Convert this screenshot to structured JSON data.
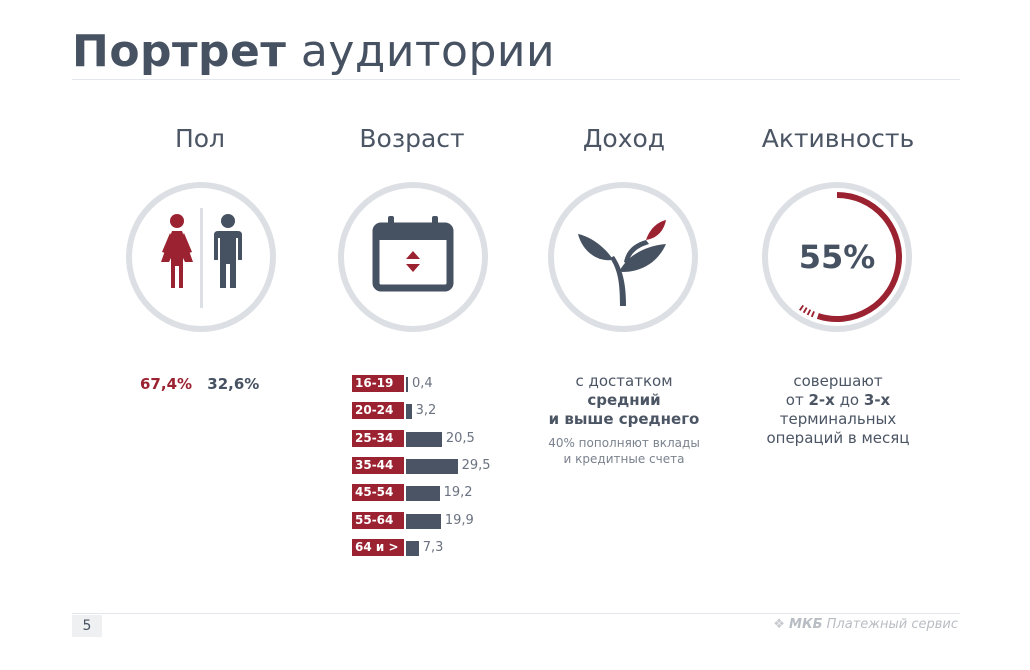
{
  "title": {
    "bold": "Портрет",
    "light": "аудитории"
  },
  "columns": {
    "gender": {
      "heading": "Пол",
      "female_pct": "67,4%",
      "male_pct": "32,6%",
      "female_color": "#9b2230",
      "male_color": "#465162"
    },
    "age": {
      "heading": "Возраст",
      "rows": [
        {
          "label": "16-19",
          "value": 0.4,
          "value_text": "0,4"
        },
        {
          "label": "20-24",
          "value": 3.2,
          "value_text": "3,2"
        },
        {
          "label": "25-34",
          "value": 20.5,
          "value_text": "20,5"
        },
        {
          "label": "35-44",
          "value": 29.5,
          "value_text": "29,5"
        },
        {
          "label": "45-54",
          "value": 19.2,
          "value_text": "19,2"
        },
        {
          "label": "55-64",
          "value": 19.9,
          "value_text": "19,9"
        },
        {
          "label": "64 и >",
          "value": 7.3,
          "value_text": "7,3"
        }
      ]
    },
    "income": {
      "heading": "Доход",
      "line1": "с достатком",
      "line2": "средний",
      "line3": "и выше среднего",
      "sub1": "40% пополняют вклады",
      "sub2": "и кредитные счета"
    },
    "activity": {
      "heading": "Активность",
      "percent": "55%",
      "percent_value": 55,
      "line1_pre": "совершают",
      "line2_a": "от ",
      "line2_b": "2-х",
      "line2_c": " до ",
      "line2_d": "3-х",
      "line3": "терминальных",
      "line4": "операций в месяц"
    }
  },
  "footer": {
    "page_number": "5",
    "brand_logo": "МКБ",
    "brand_text": "Платежный сервис"
  },
  "colors": {
    "accent": "#9b2230",
    "dark": "#465162",
    "ring": "#dcdfe3"
  },
  "icons": {
    "gender": "female-male-icon",
    "age": "calendar-icon",
    "income": "sprout-icon",
    "activity": "progress-ring-icon"
  }
}
